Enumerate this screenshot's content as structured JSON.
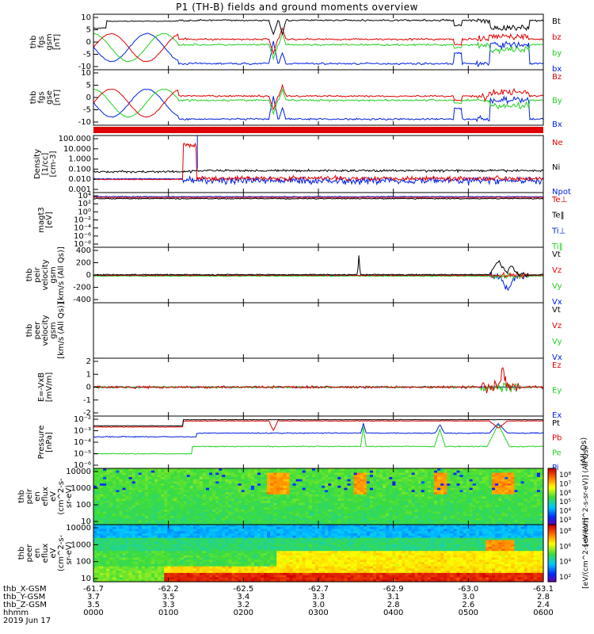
{
  "title": "P1 (TH-B) fields and ground moments overview",
  "date_label": "2019 Jun 17",
  "colors": {
    "black": "#000000",
    "red": "#e00000",
    "green": "#22d022",
    "blue": "#0020e0"
  },
  "panels": [
    {
      "id": "fgs_gsm",
      "ylabel": [
        "thb",
        "fgs",
        "gsm",
        "[nT]"
      ],
      "yticks": [
        "10",
        "5",
        "0",
        "-5",
        "-10"
      ],
      "legend": [
        {
          "t": "Bt",
          "c": "black"
        },
        {
          "t": "bz",
          "c": "red"
        },
        {
          "t": "by",
          "c": "green"
        },
        {
          "t": "bx",
          "c": "blue"
        }
      ]
    },
    {
      "id": "fgs_gse",
      "ylabel": [
        "thb",
        "fgs",
        "gse",
        "[nT]"
      ],
      "yticks": [
        "10",
        "5",
        "0",
        "-5",
        "-10"
      ],
      "legend": [
        {
          "t": "Bz",
          "c": "red"
        },
        {
          "t": "By",
          "c": "green"
        },
        {
          "t": "Bx",
          "c": "blue"
        }
      ]
    },
    {
      "id": "density",
      "ylabel": [
        "Density",
        "[1/cc]",
        "[cm-3]"
      ],
      "yticks": [
        "100.000",
        "10.000",
        "1.000",
        "0.100",
        "0.010",
        "0.001"
      ],
      "legend": [
        {
          "t": "Ne",
          "c": "red"
        },
        {
          "t": "Ni",
          "c": "black"
        },
        {
          "t": "Npot",
          "c": "blue"
        }
      ]
    },
    {
      "id": "temp",
      "ylabel": [
        "magt3",
        "[eV]"
      ],
      "yticks": [
        "10⁴",
        "10²",
        "10⁰",
        "10⁻²",
        "10⁻⁴",
        "10⁻⁶",
        "10⁻⁸"
      ],
      "legend": [
        {
          "t": "Te⊥",
          "c": "red"
        },
        {
          "t": "Te‖",
          "c": "black"
        },
        {
          "t": "Ti⊥",
          "c": "blue"
        },
        {
          "t": "Ti‖",
          "c": "green"
        }
      ]
    },
    {
      "id": "peir_vel",
      "ylabel": [
        "thb",
        "peir",
        "velocity",
        "gsm",
        "[km/s (All Qs)]"
      ],
      "yticks": [
        "400",
        "200",
        "0",
        "-200",
        "-400"
      ],
      "legend": [
        {
          "t": "Vt",
          "c": "black"
        },
        {
          "t": "Vz",
          "c": "red"
        },
        {
          "t": "Vy",
          "c": "green"
        },
        {
          "t": "Vx",
          "c": "blue"
        }
      ]
    },
    {
      "id": "peer_vel",
      "ylabel": [
        "thb",
        "peer",
        "velocity",
        "gsm",
        "[km/s (All Qs)]"
      ],
      "yticks": [],
      "legend": [
        {
          "t": "Vt",
          "c": "black"
        },
        {
          "t": "Vz",
          "c": "red"
        },
        {
          "t": "Vy",
          "c": "green"
        },
        {
          "t": "Vx",
          "c": "blue"
        }
      ]
    },
    {
      "id": "efield",
      "ylabel": [
        "E=-VxB",
        "[mV/m]"
      ],
      "yticks": [
        "2",
        "1",
        "0",
        "-1",
        "-2"
      ],
      "legend": [
        {
          "t": "Ez",
          "c": "red"
        },
        {
          "t": "Ey",
          "c": "green"
        },
        {
          "t": "Ex",
          "c": "blue"
        }
      ]
    },
    {
      "id": "pressure",
      "ylabel": [
        "Pressure",
        "[nPa]"
      ],
      "yticks": [
        "10⁻²",
        "10⁻³",
        "10⁻⁴",
        "10⁻⁵",
        "10⁻⁶"
      ],
      "legend": [
        {
          "t": "Pt",
          "c": "black"
        },
        {
          "t": "Pb",
          "c": "red"
        },
        {
          "t": "Pe",
          "c": "green"
        },
        {
          "t": "Pi",
          "c": "blue"
        }
      ],
      "side": "(All Qs)"
    },
    {
      "id": "peir_en",
      "ylabel": [
        "thb",
        "peir",
        "en",
        "eflux",
        "eV",
        "(cm^2-s-",
        "sr-eV)"
      ],
      "yticks": [
        "10000",
        "1000",
        "100",
        "10"
      ],
      "cbar": {
        "ticks": [
          "10⁸",
          "10⁷",
          "10⁶",
          "10⁵",
          "10⁴",
          "10³"
        ],
        "label": "[eV/(cm^2-s-sr-eV)] (All Qs)"
      }
    },
    {
      "id": "peer_en",
      "ylabel": [
        "thb",
        "peer",
        "en",
        "eflux",
        "eV",
        "(cm^2-s-",
        "sr-eV)"
      ],
      "yticks": [
        "10000",
        "1000",
        "100",
        "10"
      ],
      "cbar": {
        "ticks": [
          "10⁸",
          "10⁶",
          "10⁴",
          "10²"
        ],
        "label": "[eV/(cm^2-s-sr-eV)]"
      }
    }
  ],
  "xaxis": {
    "row_labels": [
      "thb_X-GSM",
      "thb_Y-GSM",
      "thb_Z-GSM",
      "hhmm"
    ],
    "ticks": [
      {
        "x": "-61.7",
        "y": "3.7",
        "z": "3.5",
        "t": "0000"
      },
      {
        "x": "-62.2",
        "y": "3.5",
        "z": "3.3",
        "t": "0100"
      },
      {
        "x": "-62.5",
        "y": "3.4",
        "z": "3.2",
        "t": "0200"
      },
      {
        "x": "-62.7",
        "y": "3.3",
        "z": "3.0",
        "t": "0300"
      },
      {
        "x": "-62.9",
        "y": "3.1",
        "z": "2.8",
        "t": "0400"
      },
      {
        "x": "-63.0",
        "y": "3.0",
        "z": "2.6",
        "t": "0500"
      },
      {
        "x": "-63.1",
        "y": "2.8",
        "z": "2.4",
        "t": "0600"
      }
    ]
  },
  "chart_data": {
    "type": "line",
    "title": "P1 (TH-B) fields and ground moments overview",
    "x_unit": "hhmm",
    "x": [
      "0000",
      "0100",
      "0200",
      "0300",
      "0400",
      "0500",
      "0600"
    ],
    "series": [
      {
        "name": "Bt",
        "panel": "fgs_gsm",
        "values": [
          8,
          7,
          8,
          8,
          8,
          7,
          8
        ]
      },
      {
        "name": "bz",
        "panel": "fgs_gsm",
        "values": [
          -5,
          1,
          1,
          0,
          1,
          1,
          1
        ]
      },
      {
        "name": "by",
        "panel": "fgs_gsm",
        "values": [
          -5,
          -1,
          -1,
          0,
          0,
          -1,
          0
        ]
      },
      {
        "name": "bx",
        "panel": "fgs_gsm",
        "values": [
          -5,
          -7,
          -8,
          -8,
          -8,
          -8,
          -8
        ]
      },
      {
        "name": "Ni",
        "panel": "density",
        "values": [
          0.1,
          0.2,
          0.15,
          0.12,
          0.12,
          0.15,
          0.1
        ]
      },
      {
        "name": "Vt",
        "panel": "peir_vel",
        "values": [
          0,
          10,
          20,
          300,
          20,
          300,
          0
        ]
      },
      {
        "name": "Pt",
        "panel": "pressure",
        "values": [
          0.003,
          0.01,
          0.012,
          0.012,
          0.012,
          0.013,
          0.013
        ]
      }
    ],
    "ylim_fgs": [
      -10,
      10
    ],
    "ylim_vel": [
      -400,
      400
    ],
    "ylim_e": [
      -2,
      2
    ]
  }
}
